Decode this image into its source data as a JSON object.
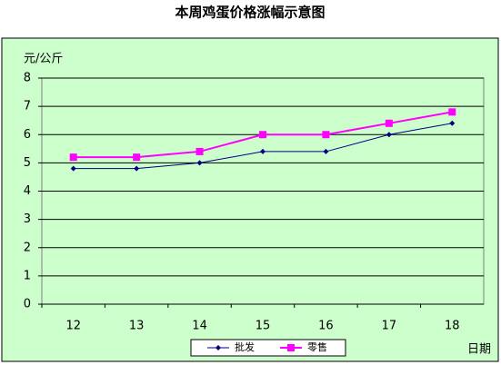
{
  "chart_data": {
    "type": "line",
    "title": "本周鸡蛋价格涨幅示意图",
    "y_label": "元/公斤",
    "x_label": "日期",
    "categories": [
      "12",
      "13",
      "14",
      "15",
      "16",
      "17",
      "18"
    ],
    "series": [
      {
        "name": "批发",
        "color": "#000080",
        "marker": "diamond",
        "values": [
          4.8,
          4.8,
          5.0,
          5.4,
          5.4,
          6.0,
          6.4
        ]
      },
      {
        "name": "零售",
        "color": "#ff00ff",
        "marker": "square",
        "values": [
          5.2,
          5.2,
          5.4,
          6.0,
          6.0,
          6.4,
          6.8
        ]
      }
    ],
    "ylim": [
      0,
      8
    ],
    "yticks": [
      0,
      1,
      2,
      3,
      4,
      5,
      6,
      7,
      8
    ],
    "grid": true,
    "legend": "bottom"
  }
}
